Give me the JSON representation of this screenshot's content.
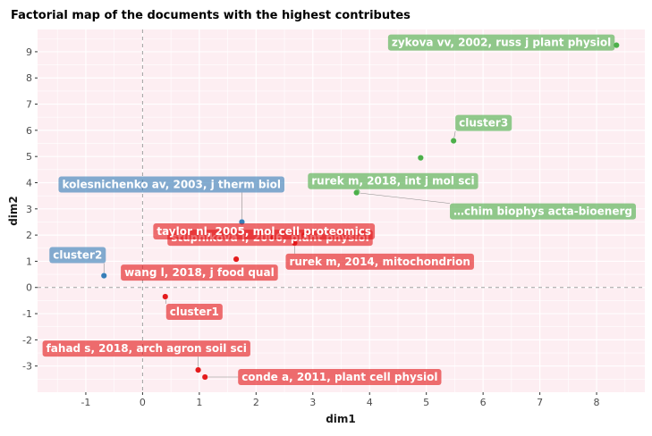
{
  "chart_data": {
    "type": "scatter",
    "title": "Factorial map of the documents with the highest contributes",
    "xlabel": "dim1",
    "ylabel": "dim2",
    "xlim": [
      -1.85,
      8.85
    ],
    "ylim": [
      -4.0,
      9.85
    ],
    "x_ticks": [
      -1,
      0,
      1,
      2,
      3,
      4,
      5,
      6,
      7,
      8
    ],
    "y_ticks": [
      -3,
      -2,
      -1,
      0,
      1,
      2,
      3,
      4,
      5,
      6,
      7,
      8,
      9
    ],
    "reference_lines": {
      "x": 0,
      "y": 0,
      "style": "dashed"
    },
    "grid": true,
    "legend": "none",
    "colors": {
      "cluster1": "#e41a1c",
      "cluster2": "#377eb8",
      "cluster3": "#4daf4a",
      "panel": "#fdeef2",
      "grid": "#ffffff"
    },
    "points": [
      {
        "label": "zykova vv, 2002, russ j plant physiol",
        "cluster": "cluster3",
        "x": 8.35,
        "y": 9.25
      },
      {
        "label": "cluster3",
        "cluster": "cluster3",
        "x": 5.48,
        "y": 5.6
      },
      {
        "label": "",
        "cluster": "cluster3",
        "x": 4.9,
        "y": 4.95
      },
      {
        "label": "rurek m, 2018, int j mol sci",
        "cluster": "cluster3",
        "x": 3.78,
        "y": 3.65
      },
      {
        "label": "…chim biophys acta-bioenerg",
        "cluster": "cluster3",
        "x": 3.77,
        "y": 3.62
      },
      {
        "label": "kolesnichenko av, 2003, j therm biol",
        "cluster": "cluster2",
        "x": 1.75,
        "y": 2.5
      },
      {
        "label": "cluster2",
        "cluster": "cluster2",
        "x": -0.68,
        "y": 0.45
      },
      {
        "label": "stupnikova i, 2006, plant physiol",
        "cluster": "cluster1",
        "x": 2.85,
        "y": 2.0
      },
      {
        "label": "taylor nl, 2005, mol cell proteomics",
        "cluster": "cluster1",
        "x": 2.3,
        "y": 1.9
      },
      {
        "label": "rurek m, 2014, mitochondrion",
        "cluster": "cluster1",
        "x": 2.68,
        "y": 1.7
      },
      {
        "label": "wang l, 2018, j food qual",
        "cluster": "cluster1",
        "x": 1.65,
        "y": 1.08
      },
      {
        "label": "cluster1",
        "cluster": "cluster1",
        "x": 0.4,
        "y": -0.35
      },
      {
        "label": "fahad s, 2018, arch agron soil sci",
        "cluster": "cluster1",
        "x": 0.98,
        "y": -3.15
      },
      {
        "label": "conde a, 2011, plant cell physiol",
        "cluster": "cluster1",
        "x": 1.1,
        "y": -3.42
      }
    ]
  }
}
